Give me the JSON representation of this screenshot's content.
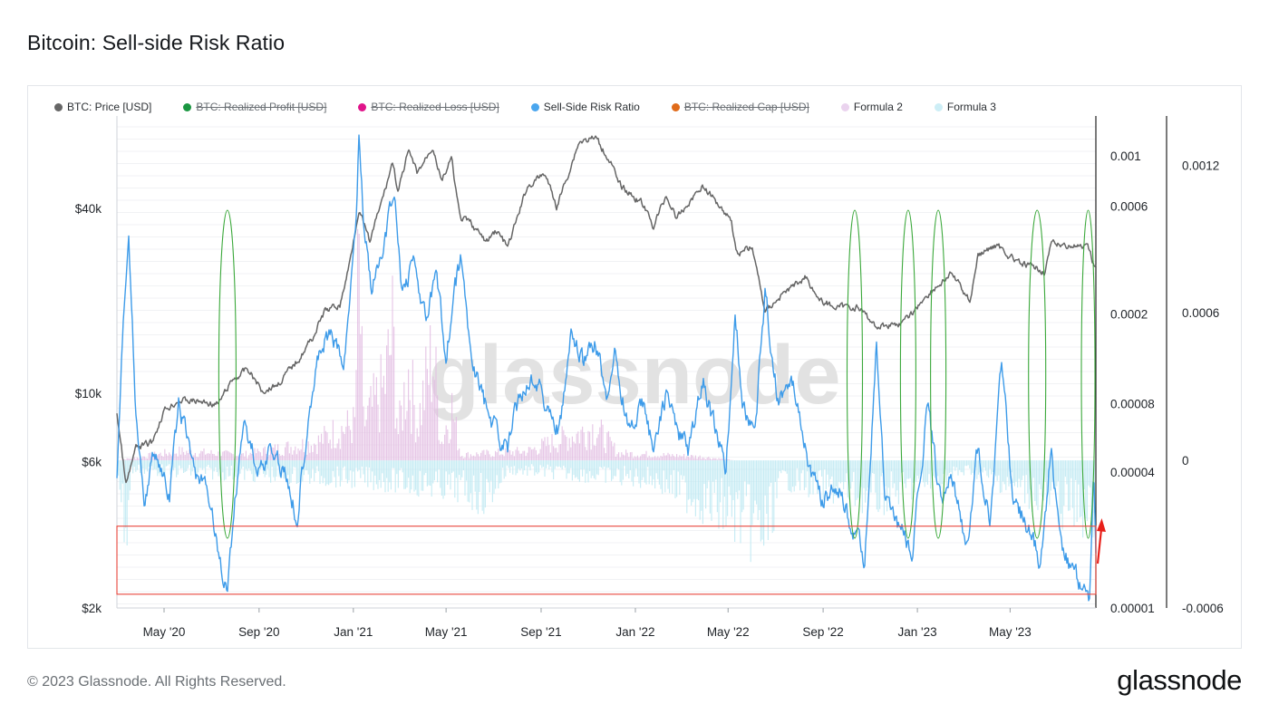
{
  "page": {
    "title": "Bitcoin: Sell-side Risk Ratio",
    "watermark": "glassnode",
    "copyright": "© 2023 Glassnode. All Rights Reserved.",
    "logo": "glassnode"
  },
  "legend": [
    {
      "label": "BTC: Price [USD]",
      "color": "#666666",
      "active": true
    },
    {
      "label": "BTC: Realized Profit [USD]",
      "color": "#1a9641",
      "active": false
    },
    {
      "label": "BTC: Realized Loss [USD]",
      "color": "#e0148a",
      "active": false
    },
    {
      "label": "Sell-Side Risk Ratio",
      "color": "#4aa6ee",
      "active": true
    },
    {
      "label": "BTC: Realized Cap [USD]",
      "color": "#e06b1a",
      "active": false
    },
    {
      "label": "Formula 2",
      "color": "#ead3ee",
      "active": true
    },
    {
      "label": "Formula 3",
      "color": "#cdeef6",
      "active": true
    }
  ],
  "colors": {
    "price": "#666666",
    "ratio": "#3d9be9",
    "formula2": "#e3bfe3",
    "formula3": "#bfe9f3",
    "highlight_ellipse": "#3aa83a",
    "highlight_box": "#e8443a",
    "arrow": "#e8201a"
  },
  "chart_data": {
    "type": "line",
    "title": "Bitcoin: Sell-side Risk Ratio",
    "x_range": [
      "2020-03-01",
      "2023-08-20"
    ],
    "x_ticks": [
      "May '20",
      "Sep '20",
      "Jan '21",
      "May '21",
      "Sep '21",
      "Jan '22",
      "May '22",
      "Sep '22",
      "Jan '23",
      "May '23"
    ],
    "x_tick_dates": [
      "2020-05-01",
      "2020-09-01",
      "2021-01-01",
      "2021-05-01",
      "2021-09-01",
      "2022-01-01",
      "2022-05-01",
      "2022-09-01",
      "2023-01-01",
      "2023-05-01"
    ],
    "axes": {
      "price": {
        "scale": "log",
        "range": [
          2000,
          80000
        ],
        "ticks": [
          "$2k",
          "$6k",
          "$10k",
          "$40k"
        ],
        "tick_values": [
          2000,
          6000,
          10000,
          40000
        ]
      },
      "ratio": {
        "scale": "log",
        "range": [
          1e-05,
          0.0015
        ],
        "ticks": [
          "0.00001",
          "0.00004",
          "0.00008",
          "0.0002",
          "0.0006",
          "0.001"
        ],
        "tick_values": [
          1e-05,
          4e-05,
          8e-05,
          0.0002,
          0.0006,
          0.001
        ]
      },
      "formula": {
        "scale": "linear",
        "range": [
          -0.0006,
          0.0014
        ],
        "ticks": [
          "-0.0006",
          "0",
          "0.0006",
          "0.0012"
        ],
        "tick_values": [
          -0.0006,
          0,
          0.0006,
          0.0012
        ]
      }
    },
    "grid": true,
    "legend_position": "top-left",
    "series": [
      {
        "name": "BTC: Price [USD]",
        "axis": "price",
        "points": [
          [
            "2020-03-01",
            8600
          ],
          [
            "2020-03-13",
            5000
          ],
          [
            "2020-03-25",
            6600
          ],
          [
            "2020-04-15",
            6900
          ],
          [
            "2020-05-01",
            8800
          ],
          [
            "2020-05-20",
            9500
          ],
          [
            "2020-06-15",
            9400
          ],
          [
            "2020-07-10",
            9200
          ],
          [
            "2020-07-28",
            11000
          ],
          [
            "2020-08-17",
            12000
          ],
          [
            "2020-09-05",
            10200
          ],
          [
            "2020-09-25",
            10700
          ],
          [
            "2020-10-21",
            12800
          ],
          [
            "2020-11-10",
            15300
          ],
          [
            "2020-11-25",
            18500
          ],
          [
            "2020-12-15",
            19400
          ],
          [
            "2020-12-27",
            26500
          ],
          [
            "2021-01-08",
            40000
          ],
          [
            "2021-01-22",
            31000
          ],
          [
            "2021-02-10",
            45000
          ],
          [
            "2021-02-21",
            57000
          ],
          [
            "2021-02-28",
            45000
          ],
          [
            "2021-03-13",
            61000
          ],
          [
            "2021-03-25",
            52000
          ],
          [
            "2021-04-14",
            64000
          ],
          [
            "2021-04-25",
            49000
          ],
          [
            "2021-05-08",
            58000
          ],
          [
            "2021-05-19",
            37000
          ],
          [
            "2021-06-01",
            36000
          ],
          [
            "2021-06-22",
            31000
          ],
          [
            "2021-07-05",
            34000
          ],
          [
            "2021-07-20",
            29800
          ],
          [
            "2021-08-14",
            47000
          ],
          [
            "2021-09-06",
            52000
          ],
          [
            "2021-09-21",
            40500
          ],
          [
            "2021-10-05",
            51000
          ],
          [
            "2021-10-20",
            66000
          ],
          [
            "2021-11-10",
            68000
          ],
          [
            "2021-11-30",
            57000
          ],
          [
            "2021-12-10",
            48000
          ],
          [
            "2022-01-10",
            41500
          ],
          [
            "2022-01-24",
            35000
          ],
          [
            "2022-02-10",
            44000
          ],
          [
            "2022-02-24",
            37000
          ],
          [
            "2022-03-28",
            47500
          ],
          [
            "2022-04-20",
            41000
          ],
          [
            "2022-05-05",
            37000
          ],
          [
            "2022-05-12",
            28500
          ],
          [
            "2022-06-01",
            30000
          ],
          [
            "2022-06-18",
            18500
          ],
          [
            "2022-07-10",
            21000
          ],
          [
            "2022-08-10",
            24000
          ],
          [
            "2022-08-28",
            20000
          ],
          [
            "2022-09-20",
            19000
          ],
          [
            "2022-10-15",
            19200
          ],
          [
            "2022-11-09",
            16500
          ],
          [
            "2022-12-15",
            17000
          ],
          [
            "2023-01-14",
            21000
          ],
          [
            "2023-02-15",
            24500
          ],
          [
            "2023-03-10",
            20000
          ],
          [
            "2023-03-20",
            28000
          ],
          [
            "2023-04-14",
            30500
          ],
          [
            "2023-05-12",
            26500
          ],
          [
            "2023-06-15",
            25000
          ],
          [
            "2023-06-23",
            30500
          ],
          [
            "2023-07-14",
            30400
          ],
          [
            "2023-08-10",
            29500
          ],
          [
            "2023-08-17",
            26300
          ],
          [
            "2023-08-20",
            26000
          ]
        ]
      },
      {
        "name": "Sell-Side Risk Ratio",
        "axis": "ratio",
        "points": [
          [
            "2020-03-01",
            4e-05
          ],
          [
            "2020-03-10",
            0.0002
          ],
          [
            "2020-03-16",
            0.0005
          ],
          [
            "2020-03-24",
            9e-05
          ],
          [
            "2020-04-05",
            3e-05
          ],
          [
            "2020-04-20",
            5e-05
          ],
          [
            "2020-05-08",
            3e-05
          ],
          [
            "2020-05-20",
            8e-05
          ],
          [
            "2020-06-10",
            4e-05
          ],
          [
            "2020-06-30",
            3e-05
          ],
          [
            "2020-07-15",
            1.4e-05
          ],
          [
            "2020-07-22",
            1.2e-05
          ],
          [
            "2020-08-01",
            3e-05
          ],
          [
            "2020-08-12",
            7e-05
          ],
          [
            "2020-08-30",
            4e-05
          ],
          [
            "2020-09-15",
            5e-05
          ],
          [
            "2020-10-05",
            4e-05
          ],
          [
            "2020-10-20",
            2.5e-05
          ],
          [
            "2020-11-05",
            8e-05
          ],
          [
            "2020-11-20",
            0.00014
          ],
          [
            "2020-12-01",
            0.00016
          ],
          [
            "2020-12-20",
            0.00012
          ],
          [
            "2020-12-30",
            0.0003
          ],
          [
            "2021-01-05",
            0.0006
          ],
          [
            "2021-01-08",
            0.0012
          ],
          [
            "2021-01-15",
            0.0005
          ],
          [
            "2021-01-25",
            0.00025
          ],
          [
            "2021-02-10",
            0.0004
          ],
          [
            "2021-02-22",
            0.0007
          ],
          [
            "2021-03-05",
            0.00025
          ],
          [
            "2021-03-20",
            0.00035
          ],
          [
            "2021-04-05",
            0.00018
          ],
          [
            "2021-04-18",
            0.0003
          ],
          [
            "2021-05-01",
            0.00013
          ],
          [
            "2021-05-12",
            0.00025
          ],
          [
            "2021-05-20",
            0.00035
          ],
          [
            "2021-06-01",
            0.00014
          ],
          [
            "2021-06-20",
            8e-05
          ],
          [
            "2021-07-05",
            6e-05
          ],
          [
            "2021-07-20",
            5e-05
          ],
          [
            "2021-08-05",
            9e-05
          ],
          [
            "2021-08-25",
            0.00011
          ],
          [
            "2021-09-07",
            8e-05
          ],
          [
            "2021-09-25",
            6e-05
          ],
          [
            "2021-10-10",
            0.00016
          ],
          [
            "2021-10-25",
            0.00012
          ],
          [
            "2021-11-10",
            0.00015
          ],
          [
            "2021-11-25",
            9e-05
          ],
          [
            "2021-12-05",
            0.00013
          ],
          [
            "2021-12-25",
            6e-05
          ],
          [
            "2022-01-10",
            8e-05
          ],
          [
            "2022-01-25",
            5e-05
          ],
          [
            "2022-02-10",
            9e-05
          ],
          [
            "2022-02-25",
            6e-05
          ],
          [
            "2022-03-10",
            5e-05
          ],
          [
            "2022-03-30",
            0.0001
          ],
          [
            "2022-04-15",
            6e-05
          ],
          [
            "2022-04-28",
            4e-05
          ],
          [
            "2022-05-10",
            0.0002
          ],
          [
            "2022-05-20",
            8e-05
          ],
          [
            "2022-06-05",
            6e-05
          ],
          [
            "2022-06-18",
            0.00025
          ],
          [
            "2022-07-05",
            8e-05
          ],
          [
            "2022-07-20",
            0.0001
          ],
          [
            "2022-08-01",
            8e-05
          ],
          [
            "2022-08-15",
            4e-05
          ],
          [
            "2022-09-01",
            3e-05
          ],
          [
            "2022-09-20",
            3.5e-05
          ],
          [
            "2022-10-10",
            2.2e-05
          ],
          [
            "2022-10-25",
            1.6e-05
          ],
          [
            "2022-11-09",
            0.00015
          ],
          [
            "2022-11-20",
            3e-05
          ],
          [
            "2022-12-10",
            2.2e-05
          ],
          [
            "2022-12-25",
            1.7e-05
          ],
          [
            "2023-01-14",
            8e-05
          ],
          [
            "2023-01-30",
            3e-05
          ],
          [
            "2023-02-15",
            4e-05
          ],
          [
            "2023-03-05",
            1.8e-05
          ],
          [
            "2023-03-20",
            5e-05
          ],
          [
            "2023-04-05",
            2.5e-05
          ],
          [
            "2023-04-20",
            0.00012
          ],
          [
            "2023-05-05",
            3e-05
          ],
          [
            "2023-05-25",
            2.2e-05
          ],
          [
            "2023-06-10",
            1.6e-05
          ],
          [
            "2023-06-23",
            5e-05
          ],
          [
            "2023-07-05",
            2e-05
          ],
          [
            "2023-07-20",
            1.5e-05
          ],
          [
            "2023-08-05",
            1.2e-05
          ],
          [
            "2023-08-12",
            1.1e-05
          ],
          [
            "2023-08-17",
            4.5e-05
          ],
          [
            "2023-08-20",
            2e-05
          ]
        ]
      },
      {
        "name": "Formula 2",
        "axis": "formula",
        "points": [
          [
            "2020-03-01",
            0.0
          ],
          [
            "2020-05-20",
            5e-05
          ],
          [
            "2020-08-10",
            3e-05
          ],
          [
            "2020-11-15",
            0.0001
          ],
          [
            "2020-12-05",
            0.00015
          ],
          [
            "2021-01-03",
            0.0002
          ],
          [
            "2021-01-08",
            0.0011
          ],
          [
            "2021-01-14",
            0.0002
          ],
          [
            "2021-02-10",
            0.0004
          ],
          [
            "2021-02-21",
            0.0007
          ],
          [
            "2021-02-28",
            0.00015
          ],
          [
            "2021-03-13",
            0.0005
          ],
          [
            "2021-03-25",
            0.0002
          ],
          [
            "2021-04-14",
            0.0006
          ],
          [
            "2021-04-25",
            0.0001
          ],
          [
            "2021-05-08",
            0.0003
          ],
          [
            "2021-05-20",
            3e-05
          ],
          [
            "2021-08-14",
            5e-05
          ],
          [
            "2021-10-20",
            0.00015
          ],
          [
            "2021-11-10",
            0.00018
          ],
          [
            "2021-12-10",
            4e-05
          ],
          [
            "2022-03-28",
            2e-05
          ],
          [
            "2022-05-10",
            0.0
          ],
          [
            "2023-08-20",
            0.0
          ]
        ]
      },
      {
        "name": "Formula 3",
        "axis": "formula",
        "points": [
          [
            "2020-03-01",
            0.0
          ],
          [
            "2020-03-13",
            -0.0004
          ],
          [
            "2020-03-20",
            -5e-05
          ],
          [
            "2021-01-22",
            -0.0001
          ],
          [
            "2021-05-19",
            -0.00015
          ],
          [
            "2021-06-22",
            -0.0002
          ],
          [
            "2021-07-20",
            -5e-05
          ],
          [
            "2022-01-24",
            -0.0001
          ],
          [
            "2022-05-12",
            -0.0003
          ],
          [
            "2022-06-18",
            -0.0004
          ],
          [
            "2022-07-10",
            -0.0001
          ],
          [
            "2022-11-09",
            -0.0002
          ],
          [
            "2023-03-10",
            -5e-05
          ],
          [
            "2023-08-17",
            -0.0003
          ],
          [
            "2023-08-20",
            -0.0002
          ]
        ]
      }
    ],
    "annotations": [
      {
        "type": "ellipse",
        "date": "2020-07-22"
      },
      {
        "type": "ellipse",
        "date": "2022-10-12"
      },
      {
        "type": "ellipse",
        "date": "2022-12-20"
      },
      {
        "type": "ellipse",
        "date": "2023-01-28"
      },
      {
        "type": "ellipse",
        "date": "2023-06-05"
      },
      {
        "type": "ellipse",
        "date": "2023-08-10"
      },
      {
        "type": "rectangle",
        "date_start": "2020-03-01",
        "date_end": "2023-08-20",
        "ratio_low": 1.15e-05,
        "ratio_high": 2.3e-05
      },
      {
        "type": "arrow",
        "date": "2023-08-20"
      }
    ]
  }
}
